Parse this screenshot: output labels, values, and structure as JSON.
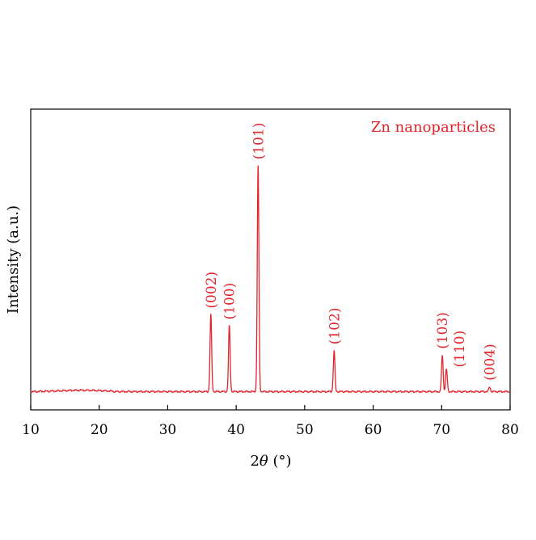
{
  "colors": {
    "series": "#e3242b",
    "axis": "#000000",
    "background": "#ffffff"
  },
  "chart_data": {
    "type": "line",
    "legend_label": "Zn nanoparticles",
    "legend_position": "top-right",
    "xlabel_prefix": "2",
    "xlabel_symbol": "θ",
    "xlabel_suffix": " (°)",
    "ylabel": "Intensity (a.u.)",
    "xlim": [
      10,
      80
    ],
    "ylim": [
      0,
      100
    ],
    "grid": false,
    "y_ticks_shown": false,
    "x_ticks": [
      10,
      20,
      30,
      40,
      50,
      60,
      70,
      80
    ],
    "x_tick_labels": [
      "10",
      "20",
      "30",
      "40",
      "50",
      "60",
      "70",
      "80"
    ],
    "baseline": 4.5,
    "peaks": [
      {
        "x": 36.3,
        "height": 34,
        "label": "(002)"
      },
      {
        "x": 39.0,
        "height": 29,
        "label": "(100)"
      },
      {
        "x": 43.2,
        "height": 100,
        "label": "(101)"
      },
      {
        "x": 54.3,
        "height": 18,
        "label": "(102)"
      },
      {
        "x": 70.1,
        "height": 16,
        "label": "(103)"
      },
      {
        "x": 70.7,
        "height": 10,
        "label": "(110)"
      },
      {
        "x": 77.0,
        "height": 2,
        "label": "(004)"
      }
    ]
  }
}
